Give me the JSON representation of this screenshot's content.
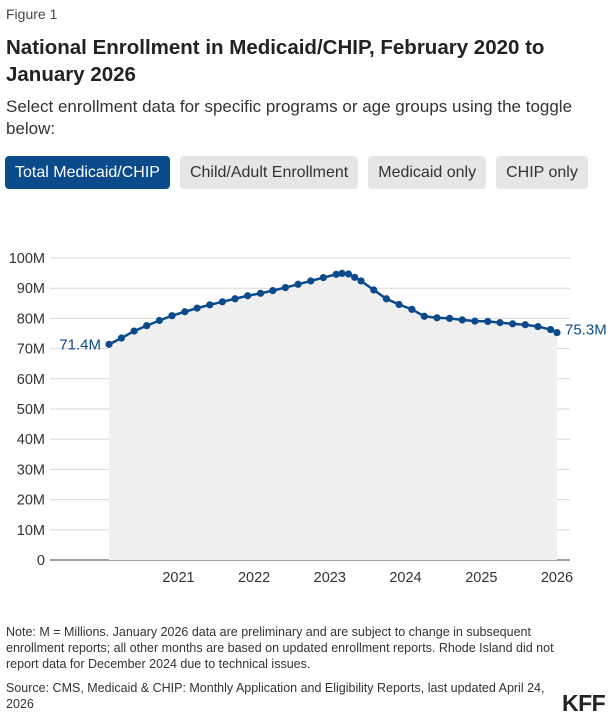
{
  "figure_label": "Figure 1",
  "title": "National Enrollment in Medicaid/CHIP, February 2020 to January 2026",
  "subtitle": "Select enrollment data for specific programs or age groups using the toggle below:",
  "toggles": [
    {
      "label": "Total Medicaid/CHIP",
      "active": true
    },
    {
      "label": "Child/Adult Enrollment",
      "active": false
    },
    {
      "label": "Medicaid only",
      "active": false
    },
    {
      "label": "CHIP only",
      "active": false
    }
  ],
  "colors": {
    "accent": "#0b4a8b",
    "area_fill": "#efefef",
    "grid": "#d8d8d8",
    "axis": "#444444"
  },
  "chart_data": {
    "type": "line",
    "title": "National Enrollment in Medicaid/CHIP, February 2020 to January 2026",
    "xlabel": "",
    "ylabel": "",
    "ylim": [
      0,
      100
    ],
    "y_unit": "M",
    "y_ticks": [
      "0",
      "10M",
      "20M",
      "30M",
      "40M",
      "50M",
      "60M",
      "70M",
      "80M",
      "90M",
      "100M"
    ],
    "x_ticks": [
      "2021",
      "2022",
      "2023",
      "2024",
      "2025",
      "2026"
    ],
    "grid": true,
    "area_fill": true,
    "start_label": "71.4M",
    "end_label": "75.3M",
    "series": [
      {
        "x": [
          "2020-02",
          "2020-04",
          "2020-06",
          "2020-08",
          "2020-10",
          "2020-12",
          "2021-02",
          "2021-04",
          "2021-06",
          "2021-08",
          "2021-10",
          "2021-12",
          "2022-02",
          "2022-04",
          "2022-06",
          "2022-08",
          "2022-10",
          "2022-12",
          "2023-02",
          "2023-03",
          "2023-04",
          "2023-05",
          "2023-06",
          "2023-08",
          "2023-10",
          "2023-12",
          "2024-02",
          "2024-04",
          "2024-06",
          "2024-08",
          "2024-10",
          "2024-12",
          "2025-02",
          "2025-04",
          "2025-06",
          "2025-08",
          "2025-10",
          "2025-12",
          "2026-01"
        ],
        "values": [
          71.4,
          73.5,
          75.8,
          77.6,
          79.3,
          80.9,
          82.2,
          83.4,
          84.5,
          85.5,
          86.5,
          87.5,
          88.3,
          89.2,
          90.2,
          91.3,
          92.4,
          93.5,
          94.6,
          94.9,
          94.7,
          93.6,
          92.4,
          89.4,
          86.5,
          84.6,
          83.0,
          80.7,
          80.2,
          80.0,
          79.5,
          79.1,
          79.0,
          78.6,
          78.2,
          77.9,
          77.3,
          76.3,
          75.3
        ]
      }
    ]
  },
  "note": "Note: M = Millions. January 2026 data are preliminary and are subject to change in subsequent enrollment reports; all other months are based on updated enrollment reports. Rhode Island did not report data for December 2024 due to technical issues.",
  "source": "Source: CMS, Medicaid & CHIP: Monthly Application and Eligibility Reports, last updated April 24, 2026",
  "logo": "KFF"
}
